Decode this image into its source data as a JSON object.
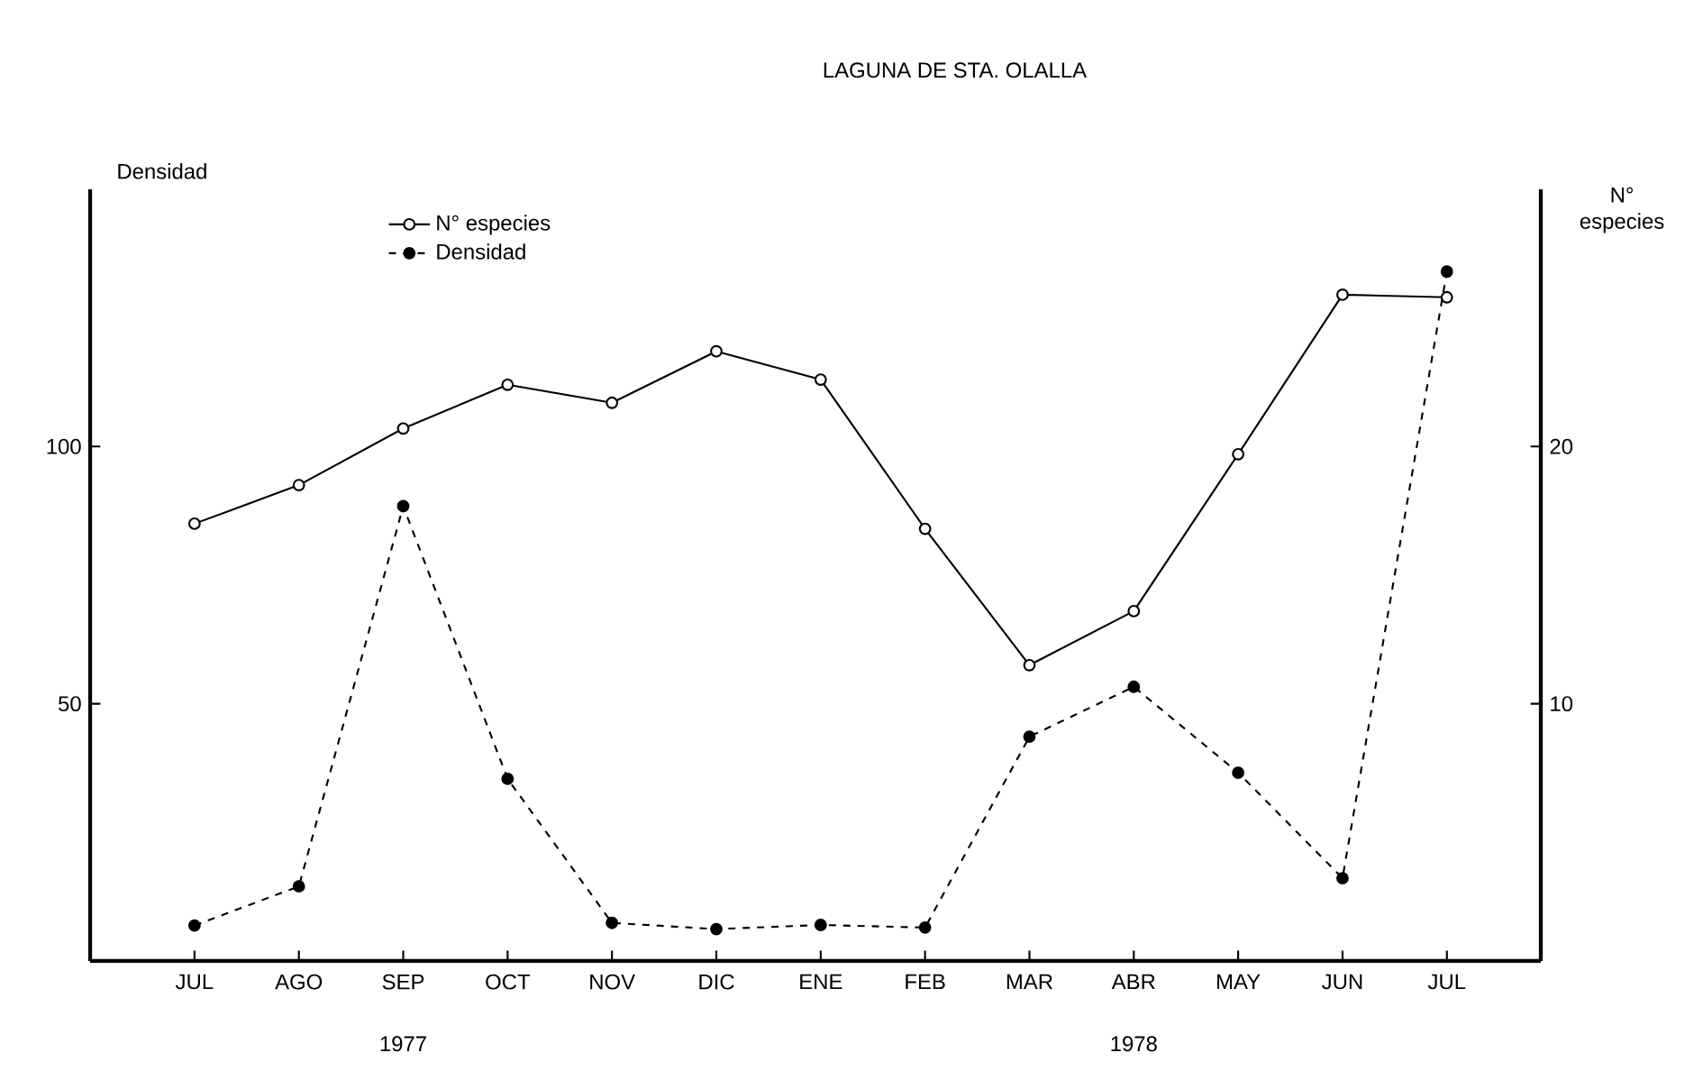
{
  "chart_data": {
    "type": "line",
    "title": "LAGUNA DE STA. OLALLA",
    "ylabel": "Densidad",
    "y2label": "N° especies",
    "categories": [
      "JUL",
      "AGO",
      "SEP",
      "OCT",
      "NOV",
      "DIC",
      "ENE",
      "FEB",
      "MAR",
      "ABR",
      "MAY",
      "JUN",
      "JUL"
    ],
    "series": [
      {
        "name": "N° especies",
        "color": "#000000",
        "axis": "y2",
        "line_style": "solid",
        "marker": "circle",
        "values": [
          17,
          18.5,
          20.7,
          22.4,
          21.7,
          23.7,
          22.6,
          16.8,
          11.5,
          13.6,
          19.7,
          25.9,
          25.8
        ]
      },
      {
        "name": "Densidad",
        "color": "#000000",
        "axis": "y",
        "line_style": "dashed",
        "marker": "circle",
        "values": [
          6.9,
          14.5,
          88.4,
          35.4,
          7.4,
          6.2,
          7.0,
          6.5,
          43.6,
          53.3,
          36.6,
          16.1,
          134
        ]
      }
    ],
    "ylim": [
      0,
      150
    ],
    "yticks": [
      50,
      100
    ],
    "y2lim": [
      0,
      30
    ],
    "y2ticks": [
      10,
      20
    ],
    "legend": "top left",
    "grid": false,
    "annotations": [
      "1977",
      "1978"
    ]
  }
}
